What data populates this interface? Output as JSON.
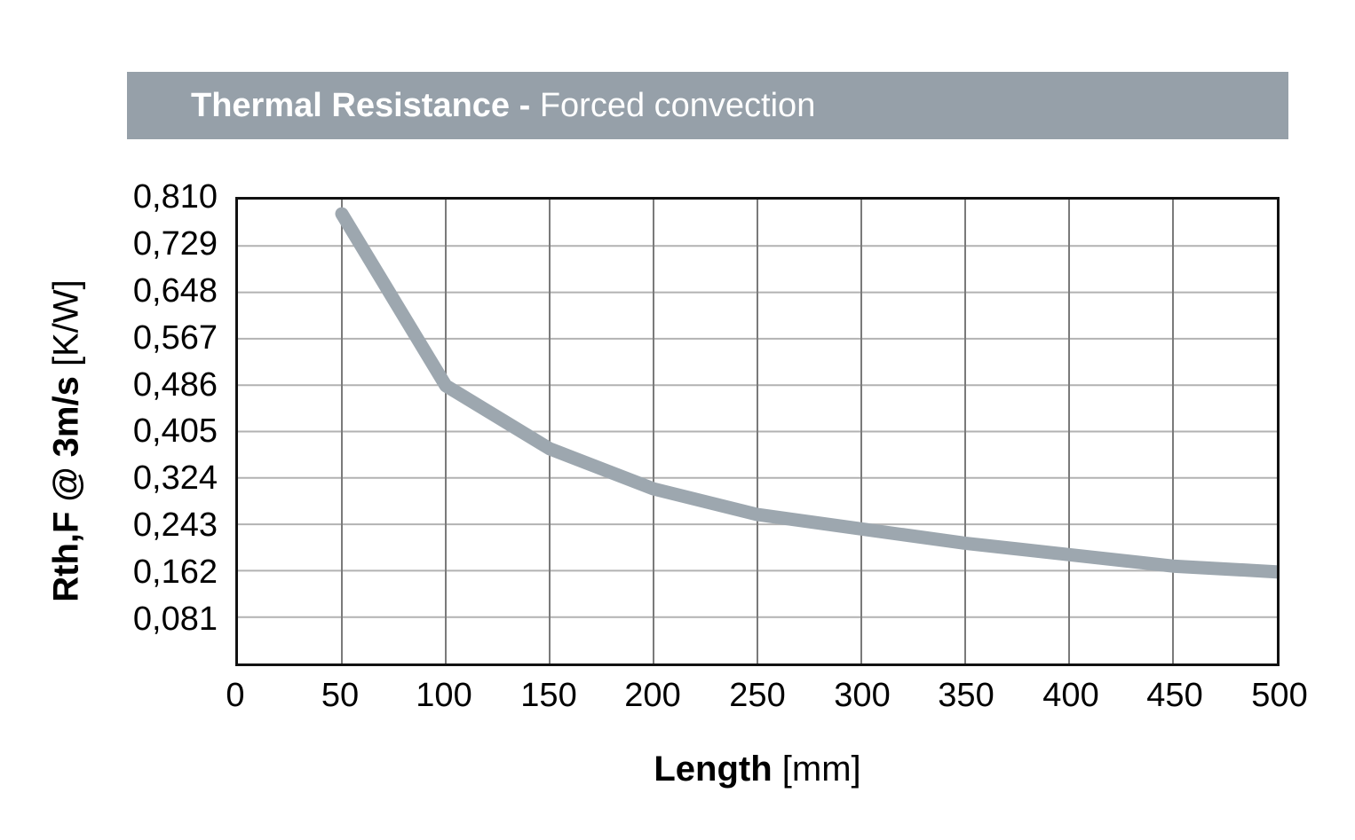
{
  "title_bar": {
    "text_bold": "Thermal Resistance - ",
    "text_regular": "Forced convection",
    "bg_color": "#96a0a9",
    "text_color": "#ffffff"
  },
  "chart_data": {
    "type": "line",
    "title": "Thermal Resistance - Forced convection",
    "x": [
      50,
      100,
      150,
      200,
      250,
      300,
      350,
      400,
      450,
      500
    ],
    "series": [
      {
        "name": "Rth,F @ 3m/s",
        "values": [
          0.785,
          0.485,
          0.375,
          0.305,
          0.26,
          0.235,
          0.21,
          0.19,
          0.17,
          0.16
        ]
      }
    ],
    "xlabel": "Length [mm]",
    "xlabel_bold": "Length",
    "xlabel_unit": " [mm]",
    "ylabel": "Rth,F @ 3m/s [K/W]",
    "ylabel_bold": "Rth,F @ 3m/s",
    "ylabel_unit": " [K/W]",
    "xlim": [
      0,
      500
    ],
    "ylim": [
      0,
      0.81
    ],
    "xticks": [
      0,
      50,
      100,
      150,
      200,
      250,
      300,
      350,
      400,
      450,
      500
    ],
    "xtick_labels": [
      "0",
      "50",
      "100",
      "150",
      "200",
      "250",
      "300",
      "350",
      "400",
      "450",
      "500"
    ],
    "ytick_values": [
      0.81,
      0.729,
      0.648,
      0.567,
      0.486,
      0.405,
      0.324,
      0.243,
      0.162,
      0.081
    ],
    "ytick_labels": [
      "0,810",
      "0,729",
      "0,648",
      "0,567",
      "0,486",
      "0,405",
      "0,324",
      "0,243",
      "0,162",
      "0,081"
    ],
    "grid": true,
    "legend": "none",
    "line_color": "#9da7af",
    "line_width": 15,
    "hgrid_color": "#b2b2b2",
    "vgrid_color": "#7a7a7a",
    "border_color": "#111111"
  }
}
